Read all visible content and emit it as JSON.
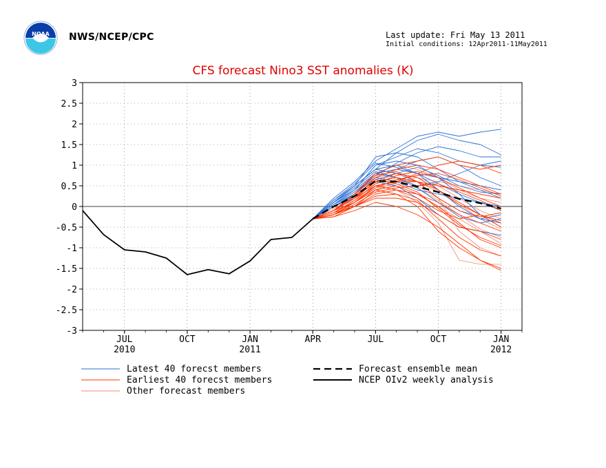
{
  "header": {
    "org": "NWS/NCEP/CPC",
    "last_update": "Last update: Fri May 13 2011",
    "initial_conditions": "Initial conditions: 12Apr2011-11May2011",
    "logo_text": "NOAA"
  },
  "colors": {
    "latest": "#2a6fd6",
    "earliest": "#ff3300",
    "other": "#f08a70",
    "mean": "#000000",
    "title": "#e00000"
  },
  "chart_data": {
    "type": "line",
    "title": "CFS forecast Nino3 SST anomalies (K)",
    "ylim": [
      -3,
      3
    ],
    "yticks": [
      "3",
      "2.5",
      "2",
      "1.5",
      "1",
      "0.5",
      "0",
      "-0.5",
      "-1",
      "-1.5",
      "-2",
      "-2.5",
      "-3"
    ],
    "xlim": [
      0,
      21
    ],
    "xticks": [
      {
        "x": 2,
        "label": "JUL",
        "year": "2010"
      },
      {
        "x": 5,
        "label": "OCT",
        "year": ""
      },
      {
        "x": 8,
        "label": "JAN",
        "year": "2011"
      },
      {
        "x": 11,
        "label": "APR",
        "year": ""
      },
      {
        "x": 14,
        "label": "JUL",
        "year": ""
      },
      {
        "x": 17,
        "label": "OCT",
        "year": ""
      },
      {
        "x": 20,
        "label": "JAN",
        "year": "2012"
      }
    ],
    "grid": true,
    "analysis": {
      "name": "NCEP OIv2 weekly analysis",
      "x": [
        0,
        1,
        2,
        3,
        4,
        5,
        6,
        7,
        8,
        9,
        10,
        11
      ],
      "y": [
        -0.1,
        -0.68,
        -1.05,
        -1.1,
        -1.25,
        -1.65,
        -1.53,
        -1.63,
        -1.32,
        -0.8,
        -0.75,
        -0.3
      ]
    },
    "mean": {
      "name": "Forecast ensemble mean",
      "x": [
        11,
        12,
        13,
        14,
        15,
        16,
        17,
        18,
        19,
        20
      ],
      "y": [
        -0.3,
        0.0,
        0.25,
        0.62,
        0.6,
        0.48,
        0.35,
        0.18,
        0.08,
        -0.05
      ]
    },
    "ensemble_start": {
      "x": 11,
      "y": -0.3
    },
    "ensemble_x": [
      12,
      13,
      14,
      15,
      16,
      17,
      18,
      19,
      20
    ],
    "latest_members": [
      [
        0.1,
        0.5,
        0.9,
        1.3,
        1.6,
        1.75,
        1.6,
        1.5,
        1.25
      ],
      [
        0.2,
        0.6,
        1.1,
        1.4,
        1.7,
        1.8,
        1.7,
        1.8,
        1.87
      ],
      [
        0.1,
        0.4,
        1.0,
        1.2,
        1.4,
        1.3,
        1.1,
        1.0,
        0.95
      ],
      [
        0.05,
        0.4,
        0.8,
        0.9,
        0.8,
        0.7,
        0.6,
        0.5,
        0.4
      ],
      [
        0.0,
        0.3,
        0.7,
        0.6,
        0.4,
        0.3,
        0.2,
        0.1,
        0.0
      ],
      [
        0.1,
        0.5,
        1.2,
        1.3,
        1.2,
        0.9,
        0.6,
        0.4,
        0.2
      ],
      [
        0.0,
        0.2,
        0.6,
        0.5,
        0.2,
        -0.2,
        -0.5,
        -0.6,
        -0.7
      ],
      [
        0.15,
        0.5,
        0.9,
        1.0,
        0.8,
        0.4,
        0.0,
        -0.3,
        -0.4
      ],
      [
        0.05,
        0.3,
        0.8,
        0.7,
        0.5,
        0.6,
        0.8,
        1.0,
        1.1
      ],
      [
        0.1,
        0.4,
        1.0,
        1.1,
        1.0,
        0.7,
        0.3,
        -0.2,
        -0.5
      ],
      [
        0.0,
        0.3,
        0.7,
        0.9,
        1.1,
        1.2,
        1.0,
        0.7,
        0.5
      ],
      [
        0.1,
        0.5,
        0.9,
        0.8,
        0.6,
        0.2,
        -0.1,
        -0.3,
        -0.2
      ],
      [
        0.05,
        0.35,
        0.75,
        1.05,
        1.3,
        1.45,
        1.35,
        1.2,
        1.2
      ],
      [
        0.1,
        0.45,
        0.85,
        0.7,
        0.45,
        0.1,
        -0.25,
        -0.4,
        -0.3
      ],
      [
        0.0,
        0.25,
        0.65,
        0.8,
        0.95,
        0.75,
        0.5,
        0.35,
        0.3
      ],
      [
        0.15,
        0.55,
        1.05,
        0.95,
        0.8,
        0.55,
        0.3,
        0.1,
        -0.1
      ]
    ],
    "earliest_members": [
      [
        -0.1,
        0.2,
        0.6,
        0.7,
        0.6,
        0.4,
        0.1,
        -0.2,
        -0.5
      ],
      [
        -0.2,
        0.0,
        0.3,
        0.4,
        0.3,
        0.0,
        -0.4,
        -0.8,
        -1.0
      ],
      [
        -0.1,
        0.1,
        0.5,
        0.6,
        0.8,
        1.0,
        1.1,
        1.0,
        0.8
      ],
      [
        -0.2,
        0.1,
        0.4,
        0.3,
        0.0,
        -0.6,
        -1.0,
        -1.3,
        -1.5
      ],
      [
        -0.15,
        0.0,
        0.2,
        0.2,
        0.1,
        -0.2,
        -0.5,
        -0.6,
        -0.8
      ],
      [
        -0.1,
        0.2,
        0.7,
        0.9,
        1.0,
        0.9,
        0.7,
        0.5,
        0.3
      ],
      [
        -0.2,
        0.1,
        0.5,
        0.4,
        0.2,
        -0.1,
        -0.3,
        -0.2,
        -0.4
      ],
      [
        -0.1,
        0.3,
        0.8,
        1.0,
        1.1,
        1.2,
        1.0,
        0.9,
        1.0
      ],
      [
        -0.25,
        -0.1,
        0.1,
        0.0,
        -0.2,
        -0.5,
        -0.9,
        -1.3,
        -1.55
      ],
      [
        -0.1,
        0.2,
        0.5,
        0.6,
        0.6,
        0.5,
        0.4,
        0.3,
        0.2
      ],
      [
        -0.2,
        0.0,
        0.4,
        0.5,
        0.3,
        0.1,
        -0.2,
        -0.4,
        -0.6
      ],
      [
        -0.15,
        0.15,
        0.55,
        0.75,
        0.85,
        0.7,
        0.45,
        0.2,
        0.0
      ],
      [
        -0.1,
        0.25,
        0.65,
        0.55,
        0.35,
        -0.05,
        -0.45,
        -0.75,
        -0.95
      ],
      [
        -0.2,
        0.05,
        0.35,
        0.45,
        0.5,
        0.55,
        0.35,
        0.15,
        -0.1
      ],
      [
        -0.1,
        0.2,
        0.6,
        0.8,
        0.7,
        0.4,
        0.05,
        -0.2,
        -0.35
      ],
      [
        -0.25,
        0.0,
        0.25,
        0.3,
        0.15,
        -0.3,
        -0.75,
        -1.05,
        -1.2
      ],
      [
        -0.15,
        0.1,
        0.45,
        0.65,
        0.75,
        0.8,
        0.65,
        0.45,
        0.25
      ],
      [
        -0.1,
        0.3,
        0.75,
        0.85,
        0.6,
        0.2,
        -0.1,
        -0.25,
        -0.15
      ]
    ],
    "other_members": [
      [
        -0.05,
        0.2,
        0.5,
        0.5,
        0.3,
        0.0,
        -0.3,
        -0.6,
        -0.9
      ],
      [
        0.0,
        0.3,
        0.6,
        0.7,
        0.5,
        0.2,
        -0.6,
        -1.0,
        -1.2
      ],
      [
        -0.1,
        0.1,
        0.4,
        0.6,
        0.7,
        0.5,
        0.2,
        -0.1,
        -0.3
      ],
      [
        0.0,
        0.3,
        0.7,
        0.8,
        0.7,
        0.6,
        0.5,
        0.4,
        0.3
      ],
      [
        -0.1,
        0.2,
        0.5,
        0.4,
        0.1,
        -0.4,
        -1.3,
        -1.4,
        -1.4
      ],
      [
        0.05,
        0.35,
        0.8,
        1.0,
        0.9,
        0.7,
        0.4,
        0.2,
        0.1
      ],
      [
        -0.05,
        0.15,
        0.45,
        0.55,
        0.45,
        0.15,
        -0.2,
        -0.55,
        -0.75
      ],
      [
        0.0,
        0.25,
        0.55,
        0.65,
        0.6,
        0.35,
        0.05,
        -0.3,
        -0.55
      ]
    ],
    "legend": [
      {
        "label": "Latest 40 forecst members",
        "style": "latest"
      },
      {
        "label": "Forecast ensemble mean",
        "style": "mean"
      },
      {
        "label": "Earliest 40 forecst members",
        "style": "earliest"
      },
      {
        "label": "NCEP OIv2 weekly analysis",
        "style": "analysis"
      },
      {
        "label": "Other forecast members",
        "style": "other"
      }
    ]
  }
}
